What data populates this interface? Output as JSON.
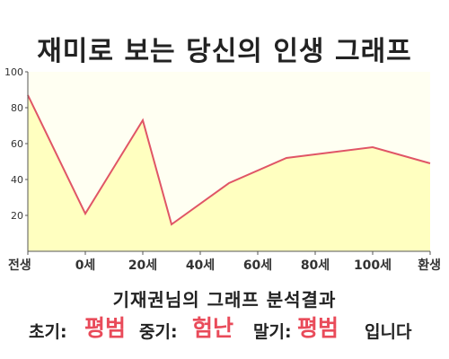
{
  "title": "재미로 보는 당신의 인생 그래프",
  "result": {
    "title": "기재권님의 그래프 분석결과",
    "early_label": "초기:",
    "early_value": "평범",
    "mid_label": "중기:",
    "mid_value": "험난",
    "late_label": "말기:",
    "late_value": "평범",
    "ending": "입니다"
  },
  "colors": {
    "line": "#e05566",
    "fill": "#ffffc0",
    "plot_bg": "#fffff2",
    "highlight": "#e94b5a"
  },
  "chart_data": {
    "type": "area",
    "title": "재미로 보는 당신의 인생 그래프",
    "xlabel": "",
    "ylabel": "",
    "ylim": [
      0,
      100
    ],
    "yticks": [
      20,
      40,
      60,
      80,
      100
    ],
    "x_tick_labels": [
      "전생",
      "0세",
      "20세",
      "40세",
      "60세",
      "80세",
      "100세",
      "환생"
    ],
    "grid": false,
    "series": [
      {
        "x": [
          -20,
          0,
          20,
          30,
          50,
          70,
          100,
          120
        ],
        "values": [
          87,
          21,
          73,
          15,
          38,
          52,
          58,
          49
        ]
      }
    ]
  }
}
